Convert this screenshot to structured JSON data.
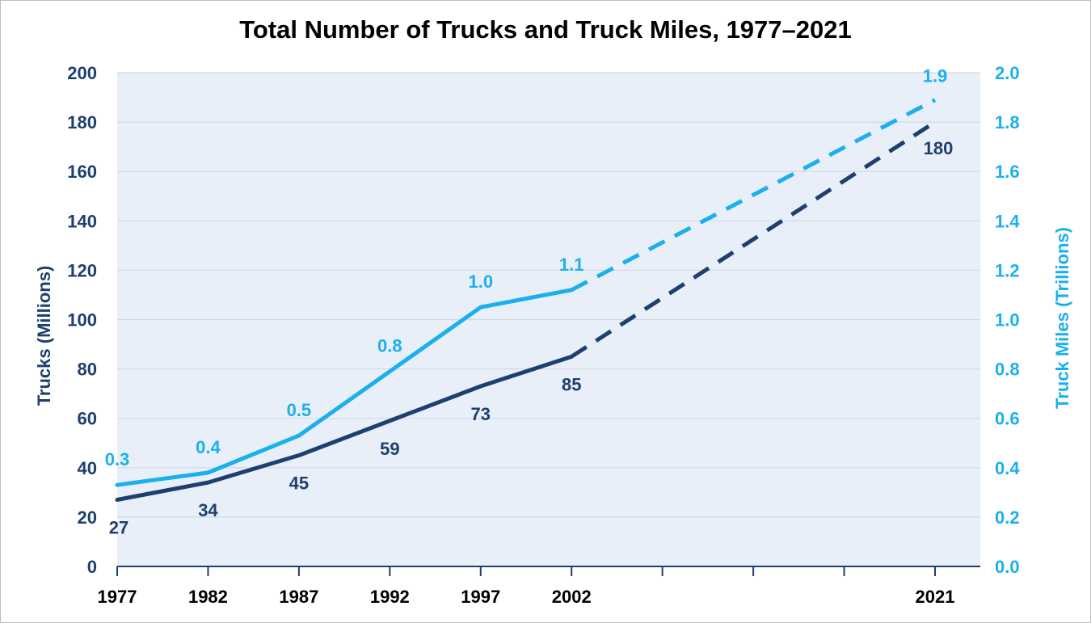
{
  "colors": {
    "trucks": "#1f3f6e",
    "miles": "#1ab0ee",
    "plot_bg": "#e9eff9",
    "grid": "#d3d9e3",
    "axis": "#1f3f6e"
  },
  "chart_data": {
    "type": "line",
    "title": "Total Number of Trucks and Truck Miles, 1977–2021",
    "x_ticks": [
      "1977",
      "1982",
      "1987",
      "1992",
      "1997",
      "2002",
      "",
      "",
      "",
      "2021"
    ],
    "ylabel_left": "Trucks (Millions)",
    "ylabel_right": "Truck Miles (Trillions)",
    "ylim_left": [
      0,
      200
    ],
    "ylim_right": [
      0,
      2.0
    ],
    "yticks_left": [
      "0",
      "20",
      "40",
      "60",
      "80",
      "100",
      "120",
      "140",
      "160",
      "180",
      "200"
    ],
    "yticks_right": [
      "0.0",
      "0.2",
      "0.4",
      "0.6",
      "0.8",
      "1.0",
      "1.2",
      "1.4",
      "1.6",
      "1.8",
      "2.0"
    ],
    "grid": true,
    "series": [
      {
        "axis": "left",
        "x": [
          "1977",
          "1982",
          "1987",
          "1992",
          "1997",
          "2002",
          "2021"
        ],
        "values": [
          27,
          34,
          45,
          59,
          73,
          85,
          180
        ],
        "labels": [
          "27",
          "34",
          "45",
          "59",
          "73",
          "85",
          "180"
        ],
        "projected_from": "2002"
      },
      {
        "axis": "right",
        "x": [
          "1977",
          "1982",
          "1987",
          "1992",
          "1997",
          "2002",
          "2021"
        ],
        "values": [
          0.33,
          0.38,
          0.53,
          0.79,
          1.05,
          1.12,
          1.89
        ],
        "labels": [
          "0.3",
          "0.4",
          "0.5",
          "0.8",
          "1.0",
          "1.1",
          "1.9"
        ],
        "projected_from": "2002"
      }
    ]
  }
}
